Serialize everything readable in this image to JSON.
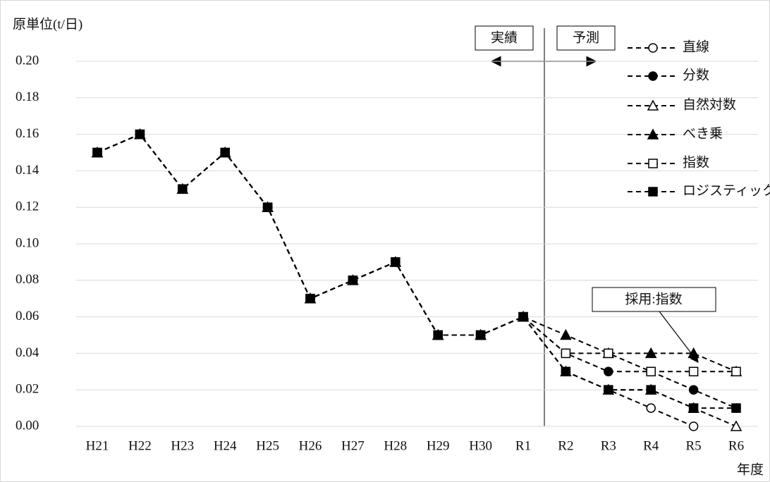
{
  "chart_data": {
    "type": "line",
    "y_label": "原単位(t/日)",
    "x_label": "年度",
    "annotations": [
      "実績",
      "予測",
      "採用:指数"
    ],
    "categories": [
      "H21",
      "H22",
      "H23",
      "H24",
      "H25",
      "H26",
      "H27",
      "H28",
      "H29",
      "H30",
      "R1",
      "R2",
      "R3",
      "R4",
      "R5",
      "R6"
    ],
    "ylim": [
      0,
      0.2
    ],
    "yticks": [
      {
        "value": 0,
        "label": "0.00"
      },
      {
        "value": 0.02,
        "label": "0.02"
      },
      {
        "value": 0.04,
        "label": "0.04"
      },
      {
        "value": 0.06,
        "label": "0.06"
      },
      {
        "value": 0.08,
        "label": "0.08"
      },
      {
        "value": 0.1,
        "label": "0.10"
      },
      {
        "value": 0.12,
        "label": "0.12"
      },
      {
        "value": 0.14,
        "label": "0.14"
      },
      {
        "value": 0.16,
        "label": "0.16"
      },
      {
        "value": 0.18,
        "label": "0.18"
      },
      {
        "value": 0.2,
        "label": "0.20"
      }
    ],
    "grid": true,
    "series": [
      {
        "name": "直線",
        "color": "#000000",
        "marker": "circle",
        "filled": false,
        "values": [
          0.15,
          0.16,
          0.13,
          0.15,
          0.12,
          0.07,
          0.08,
          0.09,
          0.05,
          0.05,
          0.06,
          0.03,
          0.02,
          0.01,
          0,
          null
        ]
      },
      {
        "name": "分数",
        "color": "#000000",
        "marker": "circle",
        "filled": true,
        "values": [
          0.15,
          0.16,
          0.13,
          0.15,
          0.12,
          0.07,
          0.08,
          0.09,
          0.05,
          0.05,
          0.06,
          0.04,
          0.03,
          0.03,
          0.02,
          0.01
        ]
      },
      {
        "name": "自然対数",
        "color": "#000000",
        "marker": "triangle",
        "filled": false,
        "values": [
          0.15,
          0.16,
          0.13,
          0.15,
          0.12,
          0.07,
          0.08,
          0.09,
          0.05,
          0.05,
          0.06,
          0.03,
          0.02,
          0.02,
          0.01,
          0
        ]
      },
      {
        "name": "べき乗",
        "color": "#000000",
        "marker": "triangle",
        "filled": true,
        "values": [
          0.15,
          0.16,
          0.13,
          0.15,
          0.12,
          0.07,
          0.08,
          0.09,
          0.05,
          0.05,
          0.06,
          0.05,
          0.04,
          0.04,
          0.04,
          0.03
        ]
      },
      {
        "name": "指数",
        "color": "#000000",
        "marker": "square",
        "filled": false,
        "values": [
          0.15,
          0.16,
          0.13,
          0.15,
          0.12,
          0.07,
          0.08,
          0.09,
          0.05,
          0.05,
          0.06,
          0.04,
          0.04,
          0.03,
          0.03,
          0.03
        ]
      },
      {
        "name": "ロジスティック",
        "color": "#000000",
        "marker": "square",
        "filled": true,
        "values": [
          0.15,
          0.16,
          0.13,
          0.15,
          0.12,
          0.07,
          0.08,
          0.09,
          0.05,
          0.05,
          0.06,
          0.03,
          0.02,
          0.02,
          0.01,
          0.01
        ]
      }
    ]
  }
}
